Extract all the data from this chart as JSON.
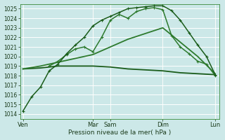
{
  "xlabel": "Pression niveau de la mer( hPa )",
  "bg_color": "#cce8e8",
  "grid_color": "#ffffff",
  "ylim": [
    1013.5,
    1025.5
  ],
  "yticks": [
    1014,
    1015,
    1016,
    1017,
    1018,
    1019,
    1020,
    1021,
    1022,
    1023,
    1024,
    1025
  ],
  "xlim": [
    -0.3,
    22.5
  ],
  "xtick_labels": [
    "Ven",
    "Mar",
    "Sam",
    "Dim",
    "Lun"
  ],
  "xtick_positions": [
    0,
    8,
    10,
    16,
    22
  ],
  "day_vlines": [
    0,
    8,
    10,
    16,
    22
  ],
  "lines": [
    {
      "x": [
        0,
        1,
        2,
        3,
        4,
        5,
        6,
        7,
        8,
        9,
        10,
        11,
        12,
        13,
        14,
        15,
        16,
        17,
        18,
        19,
        20,
        21,
        22
      ],
      "y": [
        1014.3,
        1015.8,
        1016.8,
        1018.5,
        1019.2,
        1020.3,
        1021.2,
        1022.0,
        1023.2,
        1023.8,
        1024.2,
        1024.6,
        1025.0,
        1025.1,
        1025.2,
        1025.3,
        1025.3,
        1024.8,
        1023.8,
        1022.5,
        1021.2,
        1020.0,
        1018.1
      ],
      "color": "#1a5c1a",
      "lw": 1.1,
      "marker": "+",
      "ms": 3.5,
      "zorder": 5
    },
    {
      "x": [
        3,
        4,
        5,
        6,
        7,
        8,
        9,
        10,
        11,
        12,
        13,
        14,
        15,
        16,
        17,
        18,
        19,
        20,
        21,
        22
      ],
      "y": [
        1019.0,
        1019.5,
        1020.2,
        1020.8,
        1021.0,
        1020.5,
        1022.0,
        1023.8,
        1024.4,
        1024.0,
        1024.7,
        1025.0,
        1025.1,
        1024.9,
        1022.2,
        1021.0,
        1020.3,
        1019.5,
        1019.2,
        1018.0
      ],
      "color": "#2d7a2d",
      "lw": 1.1,
      "marker": "+",
      "ms": 3.5,
      "zorder": 4
    },
    {
      "x": [
        0,
        2,
        4,
        6,
        8,
        10,
        12,
        14,
        16,
        18,
        20,
        22
      ],
      "y": [
        1018.7,
        1019.0,
        1019.4,
        1019.8,
        1020.2,
        1021.0,
        1021.8,
        1022.4,
        1023.0,
        1021.5,
        1020.0,
        1018.2
      ],
      "color": "#2d7a2d",
      "lw": 1.3,
      "marker": null,
      "ms": 0,
      "zorder": 3
    },
    {
      "x": [
        0,
        2,
        4,
        6,
        8,
        10,
        12,
        14,
        16,
        18,
        20,
        22
      ],
      "y": [
        1018.7,
        1018.8,
        1019.0,
        1019.0,
        1019.0,
        1018.9,
        1018.7,
        1018.6,
        1018.5,
        1018.3,
        1018.2,
        1018.1
      ],
      "color": "#1a5c1a",
      "lw": 1.3,
      "marker": null,
      "ms": 0,
      "zorder": 2
    }
  ]
}
